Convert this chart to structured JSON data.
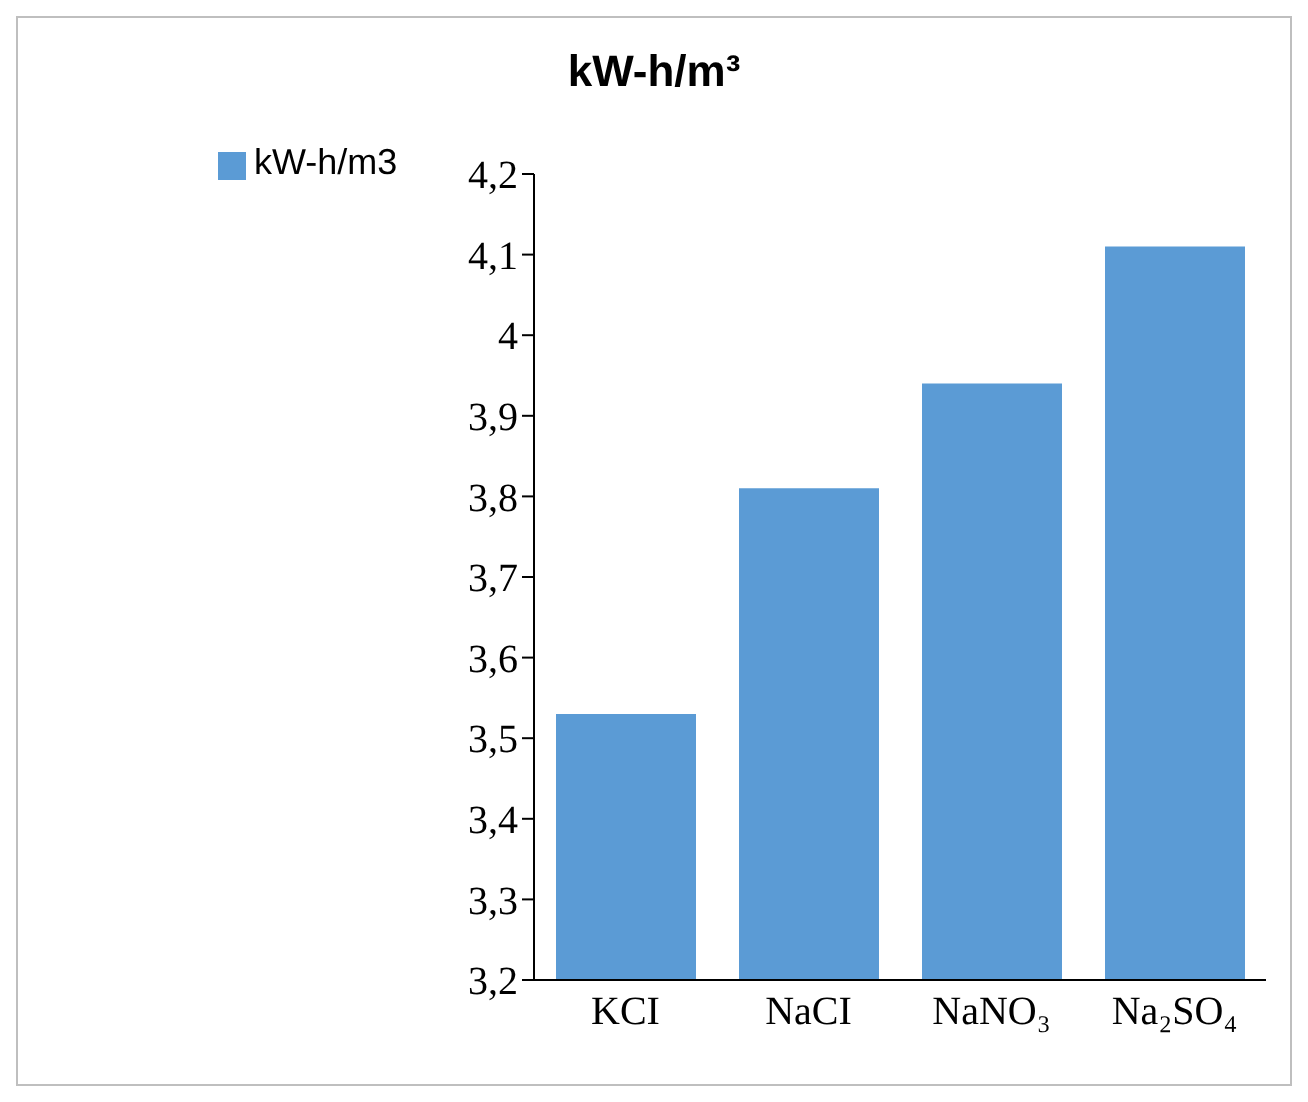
{
  "chart_data": {
    "type": "bar",
    "title": "kW-h/m³",
    "categories": [
      "KCI",
      "NaCI",
      "NaNO₃",
      "Na₂SO₄"
    ],
    "series": [
      {
        "name": "kW-h/m3",
        "color": "#5b9bd5",
        "values": [
          3.53,
          3.81,
          3.94,
          4.11
        ]
      }
    ],
    "ylim": [
      3.2,
      4.2
    ],
    "yticks": [
      {
        "value": 3.2,
        "label": "3,2"
      },
      {
        "value": 3.3,
        "label": "3,3"
      },
      {
        "value": 3.4,
        "label": "3,4"
      },
      {
        "value": 3.5,
        "label": "3,5"
      },
      {
        "value": 3.6,
        "label": "3,6"
      },
      {
        "value": 3.7,
        "label": "3,7"
      },
      {
        "value": 3.8,
        "label": "3,8"
      },
      {
        "value": 3.9,
        "label": "3,9"
      },
      {
        "value": 4,
        "label": "4"
      },
      {
        "value": 4.1,
        "label": "4,1"
      },
      {
        "value": 4.2,
        "label": "4,2"
      }
    ],
    "grid": false,
    "legend": "top left"
  }
}
